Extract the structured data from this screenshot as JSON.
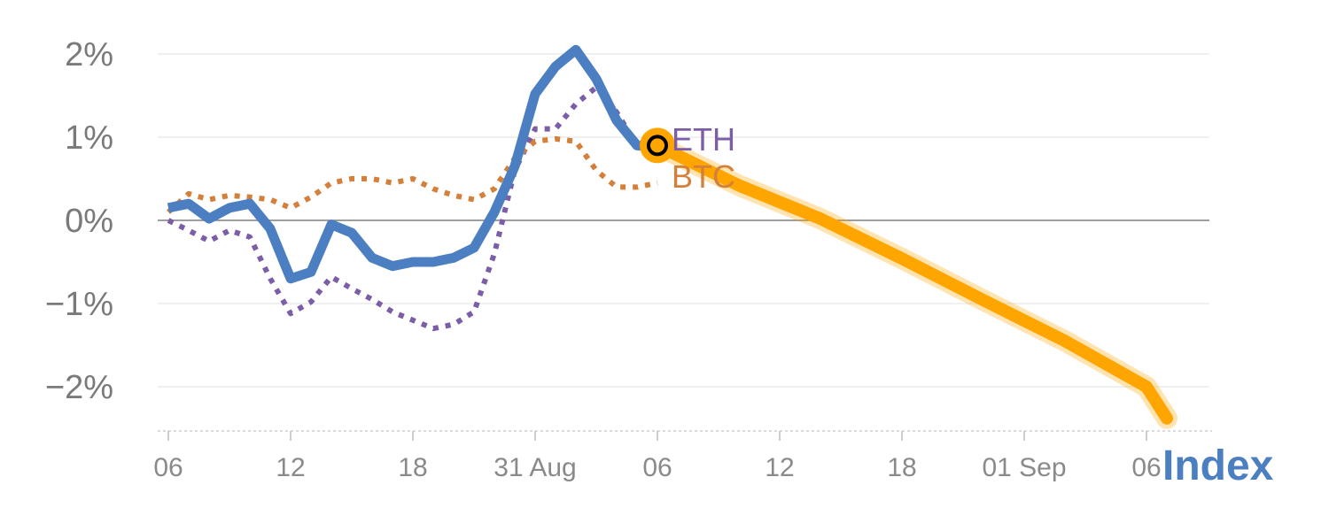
{
  "chart_data": {
    "type": "line",
    "title": "",
    "xlabel": "",
    "ylabel": "",
    "x_tick_labels": [
      "06",
      "12",
      "18",
      "31 Aug",
      "06",
      "12",
      "18",
      "01 Sep",
      "06"
    ],
    "y_ticks": [
      2,
      1,
      0,
      -1,
      -2
    ],
    "y_tick_labels": [
      "2%",
      "1%",
      "0%",
      "−1%",
      "−2%"
    ],
    "ylim": [
      -2.5,
      2.4
    ],
    "x_range_days": [
      0,
      49.5
    ],
    "grid": true,
    "zero_line": true,
    "series": [
      {
        "name": "",
        "color": "#4b7fc2",
        "style": "solid",
        "x": [
          0,
          1,
          2,
          3,
          4,
          5,
          6,
          7,
          8,
          9,
          10,
          11,
          12,
          13,
          14,
          15,
          16,
          17,
          18,
          19,
          20,
          21,
          22,
          23,
          24,
          25,
          26,
          27,
          28,
          29,
          30,
          31,
          32
        ],
        "y": [
          0.15,
          0.2,
          0.02,
          0.15,
          0.2,
          -0.1,
          -0.7,
          -0.62,
          -0.05,
          -0.15,
          -0.45,
          -0.55,
          -0.5,
          -0.5,
          -0.45,
          -0.33,
          0.1,
          0.65,
          1.52,
          1.85,
          2.05,
          1.7,
          1.2,
          0.9,
          0.88,
          null,
          null,
          null,
          null,
          null,
          null,
          null,
          null
        ]
      },
      {
        "name": "ETH",
        "color": "#7b5ea7",
        "style": "dotted",
        "x": [
          0,
          1,
          2,
          3,
          4,
          5,
          6,
          7,
          8,
          9,
          10,
          11,
          12,
          13,
          14,
          15,
          16,
          17,
          18,
          19,
          20,
          21,
          22,
          23,
          24
        ],
        "y": [
          0.0,
          -0.12,
          -0.25,
          -0.12,
          -0.2,
          -0.7,
          -1.12,
          -0.98,
          -0.68,
          -0.82,
          -0.95,
          -1.1,
          -1.2,
          -1.3,
          -1.25,
          -1.1,
          -0.4,
          0.6,
          1.1,
          1.1,
          1.4,
          1.6,
          1.3,
          0.9,
          0.88
        ]
      },
      {
        "name": "BTC",
        "color": "#d4803a",
        "style": "dotted",
        "x": [
          0,
          1,
          2,
          3,
          4,
          5,
          6,
          7,
          8,
          9,
          10,
          11,
          12,
          13,
          14,
          15,
          16,
          17,
          18,
          19,
          20,
          21,
          22,
          23,
          24
        ],
        "y": [
          0.1,
          0.32,
          0.25,
          0.3,
          0.28,
          0.25,
          0.15,
          0.28,
          0.45,
          0.5,
          0.5,
          0.45,
          0.5,
          0.38,
          0.3,
          0.25,
          0.38,
          0.75,
          0.95,
          0.98,
          0.95,
          0.6,
          0.4,
          0.4,
          0.45
        ]
      },
      {
        "name": "",
        "color": "#ffa500",
        "style": "projection",
        "x": [
          24,
          28,
          32,
          36,
          40,
          44,
          48,
          49
        ],
        "y": [
          0.9,
          0.42,
          0.02,
          -0.46,
          -0.96,
          -1.45,
          -2.0,
          -2.38
        ]
      }
    ],
    "marker": {
      "x": 24,
      "y": 0.9,
      "fill": "#ffa500",
      "ring": "#000000"
    }
  },
  "series_labels": {
    "eth": "ETH",
    "btc": "BTC"
  },
  "brand": {
    "text": "Index",
    "color": "#4b7fc2"
  },
  "colors": {
    "grid": "#e6e6e6",
    "zero": "#7f7f7f",
    "axis": "#cfcfcf"
  }
}
